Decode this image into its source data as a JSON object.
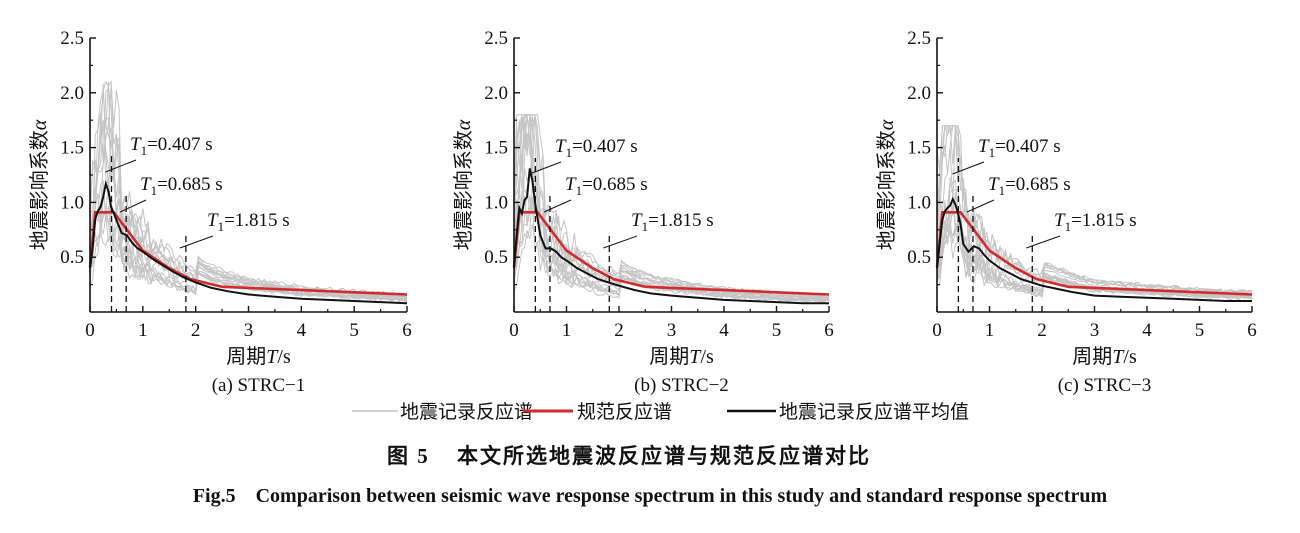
{
  "chart_data": [
    {
      "type": "line",
      "subtitle": "(a) STRC−1",
      "xlabel_prefix": "周期",
      "xlabel_var": "T",
      "xlabel_unit": "/s",
      "ylabel_prefix": "地震影响系数",
      "ylabel_var": "α",
      "xlim": [
        0,
        6
      ],
      "ylim": [
        0,
        2.5
      ],
      "xticks": [
        "0",
        "1",
        "2",
        "3",
        "4",
        "5",
        "6"
      ],
      "yticks": [
        "0.5",
        "1.0",
        "1.5",
        "2.0",
        "2.5"
      ],
      "periods": [
        {
          "var": "T",
          "sub": "1",
          "text": "=0.407 s",
          "value": 0.407
        },
        {
          "var": "T",
          "sub": "1",
          "text": "=0.685 s",
          "value": 0.685
        },
        {
          "var": "T",
          "sub": "1",
          "text": "=1.815 s",
          "value": 1.815
        }
      ],
      "mean_peak": 1.17,
      "record_peak": 2.1,
      "series": [
        {
          "name": "规范反应谱",
          "x": [
            0,
            0.1,
            0.45,
            0.7,
            1.0,
            1.5,
            1.9,
            2.5,
            3,
            4,
            5,
            6
          ],
          "y": [
            0.41,
            0.91,
            0.91,
            0.75,
            0.56,
            0.4,
            0.3,
            0.23,
            0.22,
            0.2,
            0.18,
            0.16
          ]
        },
        {
          "name": "地震记录反应谱平均值",
          "x": [
            0,
            0.05,
            0.1,
            0.15,
            0.2,
            0.25,
            0.3,
            0.35,
            0.4,
            0.45,
            0.5,
            0.6,
            0.7,
            0.8,
            0.9,
            1.0,
            1.2,
            1.4,
            1.6,
            1.8,
            2.0,
            2.3,
            2.6,
            3.0,
            3.5,
            4.0,
            4.5,
            5.0,
            5.5,
            6.0
          ],
          "y": [
            0.4,
            0.58,
            0.85,
            0.92,
            0.96,
            1.05,
            1.17,
            1.1,
            0.96,
            0.9,
            0.84,
            0.72,
            0.7,
            0.63,
            0.58,
            0.55,
            0.48,
            0.42,
            0.36,
            0.31,
            0.27,
            0.22,
            0.19,
            0.16,
            0.14,
            0.12,
            0.11,
            0.1,
            0.09,
            0.08
          ]
        }
      ]
    },
    {
      "type": "line",
      "subtitle": "(b) STRC−2",
      "xlabel_prefix": "周期",
      "xlabel_var": "T",
      "xlabel_unit": "/s",
      "ylabel_prefix": "地震影响系数",
      "ylabel_var": "α",
      "xlim": [
        0,
        6
      ],
      "ylim": [
        0,
        2.5
      ],
      "xticks": [
        "0",
        "1",
        "2",
        "3",
        "4",
        "5",
        "6"
      ],
      "yticks": [
        "0.5",
        "1.0",
        "1.5",
        "2.0",
        "2.5"
      ],
      "periods": [
        {
          "var": "T",
          "sub": "1",
          "text": "=0.407 s",
          "value": 0.407
        },
        {
          "var": "T",
          "sub": "1",
          "text": "=0.685 s",
          "value": 0.685
        },
        {
          "var": "T",
          "sub": "1",
          "text": "=1.815 s",
          "value": 1.815
        }
      ],
      "mean_peak": 1.31,
      "record_peak": 1.8,
      "series": [
        {
          "name": "规范反应谱",
          "x": [
            0,
            0.1,
            0.45,
            0.7,
            1.0,
            1.5,
            1.9,
            2.5,
            3,
            4,
            5,
            6
          ],
          "y": [
            0.41,
            0.91,
            0.91,
            0.75,
            0.56,
            0.4,
            0.3,
            0.23,
            0.22,
            0.2,
            0.18,
            0.16
          ]
        },
        {
          "name": "地震记录反应谱平均值",
          "x": [
            0,
            0.05,
            0.1,
            0.15,
            0.2,
            0.25,
            0.3,
            0.35,
            0.4,
            0.45,
            0.5,
            0.6,
            0.7,
            0.8,
            0.9,
            1.0,
            1.2,
            1.4,
            1.6,
            1.8,
            2.0,
            2.3,
            2.6,
            3.0,
            3.5,
            4.0,
            4.5,
            5.0,
            5.5,
            6.0
          ],
          "y": [
            0.4,
            0.7,
            0.95,
            0.9,
            1.02,
            1.05,
            1.31,
            1.2,
            1.0,
            0.85,
            0.7,
            0.58,
            0.58,
            0.55,
            0.5,
            0.47,
            0.4,
            0.35,
            0.3,
            0.27,
            0.24,
            0.2,
            0.17,
            0.15,
            0.13,
            0.11,
            0.1,
            0.09,
            0.08,
            0.08
          ]
        }
      ]
    },
    {
      "type": "line",
      "subtitle": "(c) STRC−3",
      "xlabel_prefix": "周期",
      "xlabel_var": "T",
      "xlabel_unit": "/s",
      "ylabel_prefix": "地震影响系数",
      "ylabel_var": "α",
      "xlim": [
        0,
        6
      ],
      "ylim": [
        0,
        2.5
      ],
      "xticks": [
        "0",
        "1",
        "2",
        "3",
        "4",
        "5",
        "6"
      ],
      "yticks": [
        "0.5",
        "1.0",
        "1.5",
        "2.0",
        "2.5"
      ],
      "periods": [
        {
          "var": "T",
          "sub": "1",
          "text": "=0.407 s",
          "value": 0.407
        },
        {
          "var": "T",
          "sub": "1",
          "text": "=0.685 s",
          "value": 0.685
        },
        {
          "var": "T",
          "sub": "1",
          "text": "=1.815 s",
          "value": 1.815
        }
      ],
      "mean_peak": 1.03,
      "record_peak": 1.7,
      "series": [
        {
          "name": "规范反应谱",
          "x": [
            0,
            0.1,
            0.45,
            0.7,
            1.0,
            1.5,
            1.9,
            2.5,
            3,
            4,
            5,
            6
          ],
          "y": [
            0.41,
            0.91,
            0.91,
            0.75,
            0.56,
            0.4,
            0.3,
            0.23,
            0.22,
            0.2,
            0.18,
            0.16
          ]
        },
        {
          "name": "地震记录反应谱平均值",
          "x": [
            0,
            0.05,
            0.1,
            0.15,
            0.2,
            0.25,
            0.3,
            0.35,
            0.4,
            0.45,
            0.5,
            0.6,
            0.7,
            0.8,
            0.9,
            1.0,
            1.2,
            1.4,
            1.6,
            1.8,
            2.0,
            2.3,
            2.6,
            3.0,
            3.5,
            4.0,
            4.5,
            5.0,
            5.5,
            6.0
          ],
          "y": [
            0.4,
            0.62,
            0.84,
            0.92,
            0.95,
            0.97,
            1.03,
            0.98,
            0.9,
            0.8,
            0.62,
            0.55,
            0.6,
            0.58,
            0.52,
            0.47,
            0.4,
            0.35,
            0.3,
            0.27,
            0.24,
            0.21,
            0.18,
            0.15,
            0.14,
            0.13,
            0.12,
            0.11,
            0.1,
            0.1
          ]
        }
      ]
    }
  ],
  "legend": {
    "records": "地震记录反应谱",
    "code": "规范反应谱",
    "mean": "地震记录反应谱平均值"
  },
  "caption": {
    "cn_label": "图 5",
    "cn_title": "本文所选地震波反应谱与规范反应谱对比",
    "en": "Fig.5　Comparison between seismic wave response spectrum in this study and standard response spectrum"
  },
  "colors": {
    "code": "#d42a2a",
    "mean": "#111111",
    "records": "#c4c4c4",
    "axis": "#111111"
  }
}
